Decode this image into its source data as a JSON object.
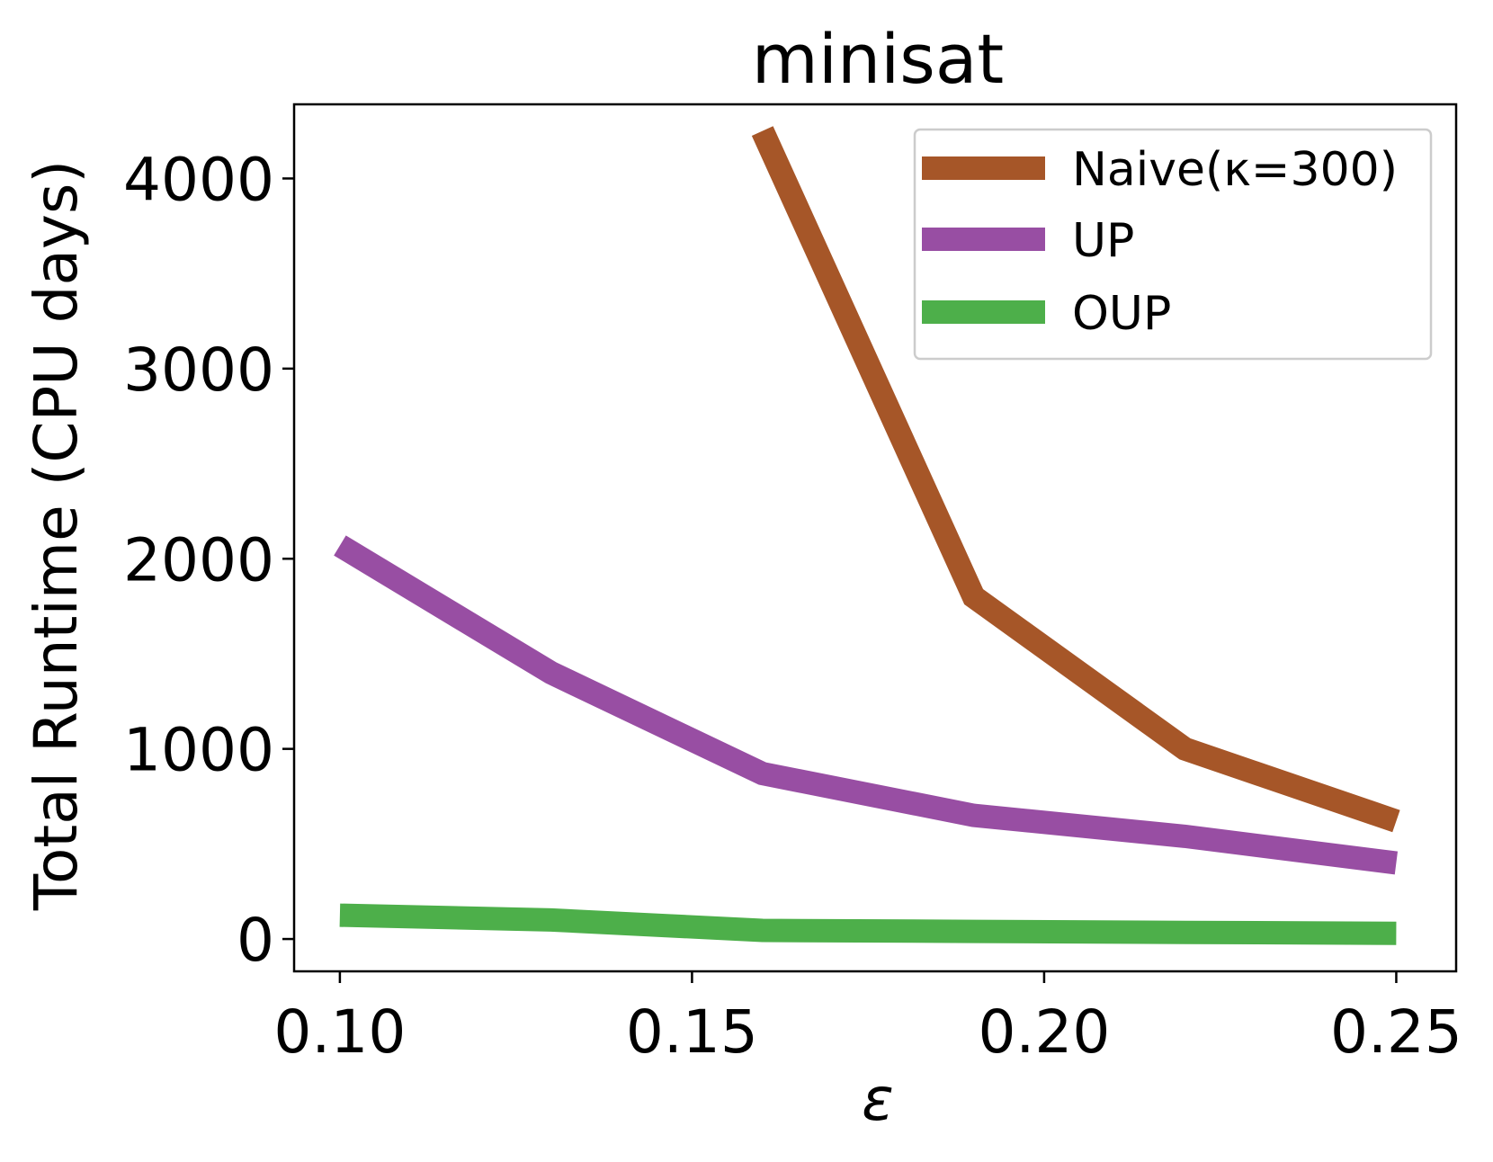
{
  "chart_data": {
    "type": "line",
    "title": "minisat",
    "xlabel": "ε",
    "ylabel": "Total Runtime (CPU days)",
    "xlim": [
      0.0935,
      0.2585
    ],
    "ylim": [
      -170,
      4390
    ],
    "x_ticks": [
      0.1,
      0.15,
      0.2,
      0.25
    ],
    "x_tick_labels": [
      "0.10",
      "0.15",
      "0.20",
      "0.25"
    ],
    "y_ticks": [
      0,
      1000,
      2000,
      3000,
      4000
    ],
    "y_tick_labels": [
      "0",
      "1000",
      "2000",
      "3000",
      "4000"
    ],
    "grid": false,
    "legend_position": "top-right",
    "series": [
      {
        "name": "Naive(κ=300)",
        "color": "#A65628",
        "x": [
          0.16,
          0.19,
          0.22,
          0.25
        ],
        "y": [
          4250,
          1800,
          1000,
          620
        ]
      },
      {
        "name": "UP",
        "color": "#984EA3",
        "x": [
          0.1,
          0.13,
          0.16,
          0.19,
          0.22,
          0.25
        ],
        "y": [
          2070,
          1400,
          870,
          650,
          540,
          400
        ]
      },
      {
        "name": "OUP",
        "color": "#4DAF4A",
        "x": [
          0.1,
          0.13,
          0.16,
          0.19,
          0.22,
          0.25
        ],
        "y": [
          125,
          100,
          45,
          40,
          35,
          30
        ]
      }
    ]
  }
}
